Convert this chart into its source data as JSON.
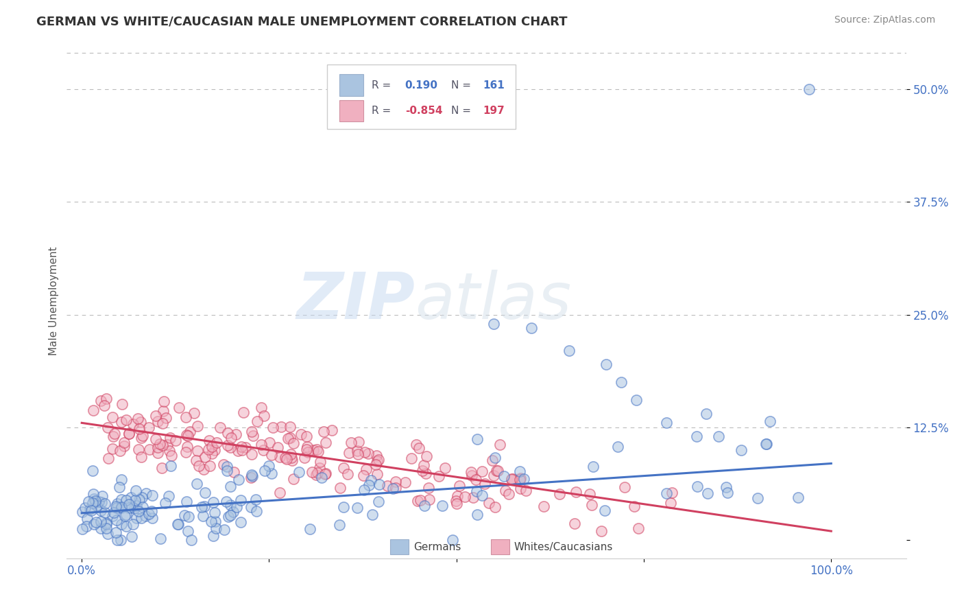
{
  "title": "GERMAN VS WHITE/CAUCASIAN MALE UNEMPLOYMENT CORRELATION CHART",
  "source": "Source: ZipAtlas.com",
  "ylabel": "Male Unemployment",
  "watermark_zip": "ZIP",
  "watermark_atlas": "atlas",
  "legend_entries": [
    {
      "label": "Germans",
      "R": "0.190",
      "N": "161",
      "color": "#aac4e0",
      "line_color": "#4472c4"
    },
    {
      "label": "Whites/Caucasians",
      "R": "-0.854",
      "N": "197",
      "color": "#f0b0c0",
      "line_color": "#d04060"
    }
  ],
  "x_ticks": [
    0.0,
    0.25,
    0.5,
    0.75,
    1.0
  ],
  "x_tick_labels": [
    "0.0%",
    "",
    "",
    "",
    "100.0%"
  ],
  "y_ticks": [
    0.0,
    0.125,
    0.25,
    0.375,
    0.5
  ],
  "y_tick_labels": [
    "",
    "12.5%",
    "25.0%",
    "37.5%",
    "50.0%"
  ],
  "xlim": [
    -0.02,
    1.1
  ],
  "ylim": [
    -0.02,
    0.55
  ],
  "background_color": "#ffffff",
  "grid_color": "#bbbbbb",
  "title_color": "#333333",
  "axis_tick_color": "#4472c4",
  "german_intercept": 0.03,
  "german_slope": 0.055,
  "white_intercept": 0.13,
  "white_slope": -0.12
}
